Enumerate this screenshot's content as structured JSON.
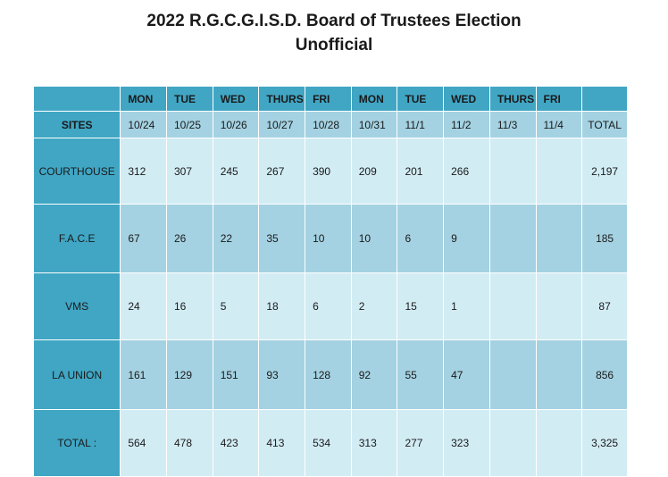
{
  "title": "2022 R.G.C.G.I.S.D. Board of Trustees Election",
  "subtitle": "Unofficial",
  "days": [
    "MON",
    "TUE",
    "WED",
    "THURS",
    "FRI",
    "MON",
    "TUE",
    "WED",
    "THURS",
    "FRI"
  ],
  "sites_header": "SITES",
  "dates": [
    "10/24",
    "10/25",
    "10/26",
    "10/27",
    "10/28",
    "10/31",
    "11/1",
    "11/2",
    "11/3",
    "11/4"
  ],
  "total_header": "TOTAL",
  "rows": [
    {
      "site": "COURTHOUSE",
      "values": [
        "312",
        "307",
        "245",
        "267",
        "390",
        "209",
        "201",
        "266",
        "",
        ""
      ],
      "total": "2,197"
    },
    {
      "site": "F.A.C.E",
      "values": [
        "67",
        "26",
        "22",
        "35",
        "10",
        "10",
        "6",
        "9",
        "",
        ""
      ],
      "total": "185"
    },
    {
      "site": "VMS",
      "values": [
        "24",
        "16",
        "5",
        "18",
        "6",
        "2",
        "15",
        "1",
        "",
        ""
      ],
      "total": "87"
    },
    {
      "site": "LA UNION",
      "values": [
        "161",
        "129",
        "151",
        "93",
        "128",
        "92",
        "55",
        "47",
        "",
        ""
      ],
      "total": "856"
    },
    {
      "site": "TOTAL :",
      "values": [
        "564",
        "478",
        "423",
        "413",
        "534",
        "313",
        "277",
        "323",
        "",
        ""
      ],
      "total": "3,325"
    }
  ]
}
